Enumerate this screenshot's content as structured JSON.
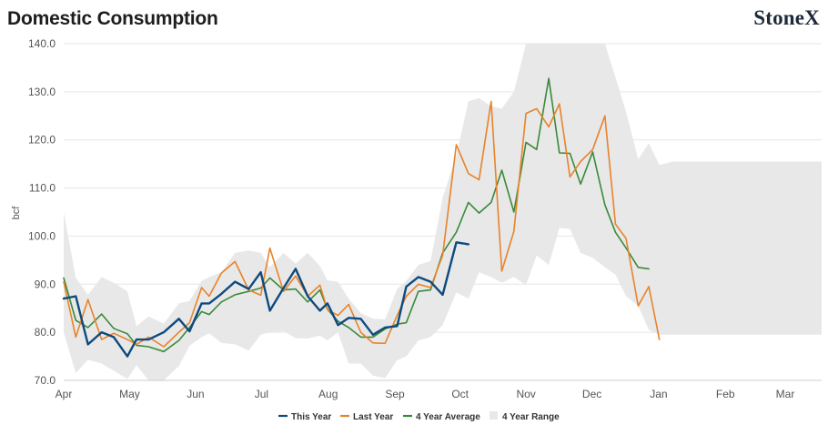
{
  "chart_data": {
    "type": "line",
    "title": "Domestic Consumption",
    "logo_text": "StoneX",
    "ylabel": "bcf",
    "xlabel": "",
    "ylim": [
      70,
      140
    ],
    "yticks": [
      "140.0",
      "130.0",
      "120.0",
      "110.0",
      "100.0",
      "90.0",
      "80.0",
      "70.0"
    ],
    "x_domain": [
      0,
      50
    ],
    "x_ticks": [
      {
        "label": "Apr",
        "x": 0
      },
      {
        "label": "May",
        "x": 4.35
      },
      {
        "label": "Jun",
        "x": 8.7
      },
      {
        "label": "Jul",
        "x": 13.05
      },
      {
        "label": "Aug",
        "x": 17.45
      },
      {
        "label": "Sep",
        "x": 21.85
      },
      {
        "label": "Oct",
        "x": 26.15
      },
      {
        "label": "Nov",
        "x": 30.5
      },
      {
        "label": "Dec",
        "x": 34.85
      },
      {
        "label": "Jan",
        "x": 39.25
      },
      {
        "label": "Feb",
        "x": 43.65
      },
      {
        "label": "Mar",
        "x": 47.6
      }
    ],
    "legend_placement": "bottom",
    "grid": true,
    "colors": {
      "this_year": "#0d4a7e",
      "last_year": "#e8832a",
      "avg": "#3a8a3a",
      "range": "#e8e8e8",
      "grid": "#e6e6e6",
      "axis": "#cccccc"
    },
    "series": [
      {
        "name": "This Year",
        "key": "this_year",
        "x": [
          0,
          0.8,
          1.6,
          2.5,
          3.3,
          4.2,
          4.8,
          5.6,
          6.6,
          7.6,
          8.3,
          9.1,
          9.6,
          10.4,
          11.3,
          12.2,
          13.0,
          13.6,
          14.5,
          15.3,
          16.1,
          16.9,
          17.4,
          18.1,
          18.8,
          19.6,
          20.4,
          21.2,
          22.0,
          22.6,
          23.4,
          24.2,
          25.0,
          25.9,
          26.7,
          27.4,
          28.2,
          28.9,
          29.7,
          30.5,
          31.2,
          32.0,
          32.7,
          33.4
        ],
        "values": [
          87.0,
          87.5,
          77.5,
          80.0,
          79.0,
          75.0,
          78.5,
          78.5,
          80.0,
          82.8,
          80.2,
          86.0,
          86.0,
          88.0,
          90.5,
          89.0,
          92.5,
          84.5,
          89.2,
          93.2,
          87.5,
          84.5,
          86.0,
          81.5,
          83.0,
          82.8,
          79.5,
          81.0,
          81.3,
          89.5,
          91.5,
          90.5,
          87.8,
          98.7,
          98.3,
          null,
          null,
          null,
          null,
          null,
          null,
          null,
          null,
          null
        ]
      },
      {
        "name": "Last Year",
        "key": "last_year",
        "x": [
          0,
          0.8,
          1.6,
          2.5,
          3.3,
          4.2,
          4.8,
          5.6,
          6.6,
          7.6,
          8.3,
          9.1,
          9.6,
          10.4,
          11.3,
          12.2,
          13.0,
          13.6,
          14.5,
          15.3,
          16.1,
          16.9,
          17.4,
          18.1,
          18.8,
          19.6,
          20.4,
          21.2,
          22.0,
          22.6,
          23.4,
          24.2,
          25.0,
          25.9,
          26.7,
          27.4,
          28.2,
          28.9,
          29.7,
          30.5,
          31.2,
          32.0,
          32.7,
          33.4,
          34.1,
          34.9,
          35.7,
          36.4,
          37.1,
          37.9,
          38.6,
          39.3,
          39.4,
          40.2,
          41.0,
          41.8,
          42.5,
          43.3,
          44.2,
          44.9,
          45.7,
          46.5,
          47.3,
          48.1,
          48.8,
          49.5,
          50
        ],
        "values": [
          90.5,
          79.0,
          86.8,
          78.5,
          79.8,
          78.5,
          77.5,
          79.0,
          77.0,
          80.0,
          82.0,
          89.3,
          87.5,
          92.3,
          94.7,
          88.8,
          87.7,
          97.5,
          88.5,
          91.7,
          87.5,
          89.8,
          84.7,
          83.5,
          85.8,
          80.0,
          77.8,
          77.7,
          83.5,
          87.5,
          90.0,
          89.3,
          96.0,
          119.0,
          113.0,
          111.7,
          128.0,
          92.7,
          101.0,
          125.5,
          126.5,
          122.7,
          127.5,
          112.3,
          115.5,
          118.0,
          125.0,
          102.5,
          99.5,
          85.5,
          89.5,
          78.5,
          null,
          null,
          null,
          null,
          null,
          null,
          null,
          null,
          null,
          null,
          null,
          null,
          null,
          null,
          null
        ]
      },
      {
        "name": "4 Year Average",
        "key": "avg",
        "x": [
          0,
          0.8,
          1.6,
          2.5,
          3.3,
          4.2,
          4.8,
          5.6,
          6.6,
          7.6,
          8.3,
          9.1,
          9.6,
          10.4,
          11.3,
          12.2,
          13.0,
          13.6,
          14.5,
          15.3,
          16.1,
          16.9,
          17.4,
          18.1,
          18.8,
          19.6,
          20.4,
          21.2,
          22.0,
          22.6,
          23.4,
          24.2,
          25.0,
          25.9,
          26.7,
          27.4,
          28.2,
          28.9,
          29.7,
          30.5,
          31.2,
          32.0,
          32.7,
          33.4,
          34.1,
          34.9,
          35.7,
          36.4,
          37.1,
          37.9,
          38.6,
          39.3,
          40.2
        ],
        "values": [
          91.3,
          82.5,
          81.0,
          83.8,
          80.8,
          79.7,
          77.3,
          77.0,
          76.0,
          78.3,
          81.0,
          84.3,
          83.7,
          86.3,
          87.8,
          88.5,
          89.2,
          91.3,
          88.8,
          89.0,
          86.3,
          88.8,
          84.8,
          82.3,
          81.0,
          79.0,
          79.0,
          80.7,
          81.7,
          82.0,
          88.5,
          88.8,
          96.5,
          100.8,
          107.0,
          104.8,
          107.0,
          113.7,
          105.0,
          119.5,
          118.0,
          132.8,
          117.3,
          117.2,
          110.8,
          117.5,
          106.5,
          100.8,
          97.5,
          93.5,
          93.2,
          null,
          null
        ]
      }
    ],
    "range": {
      "name": "4 Year Range",
      "x": [
        0,
        0.8,
        1.6,
        2.5,
        3.3,
        4.2,
        4.8,
        5.6,
        6.6,
        7.6,
        8.3,
        9.1,
        9.6,
        10.4,
        11.3,
        12.2,
        13.0,
        13.6,
        14.5,
        15.3,
        16.1,
        16.9,
        17.4,
        18.1,
        18.8,
        19.6,
        20.4,
        21.2,
        22.0,
        22.6,
        23.4,
        24.2,
        25.0,
        25.9,
        26.7,
        27.4,
        28.2,
        28.9,
        29.7,
        30.5,
        31.2,
        32.0,
        32.7,
        33.4,
        34.1,
        34.9,
        35.7,
        36.4,
        37.1,
        37.9,
        38.6,
        39.3,
        40.2,
        41.0,
        41.8,
        42.5,
        43.3,
        44.2,
        44.9,
        45.7,
        46.5,
        47.3,
        48.1,
        48.8,
        49.5,
        50
      ],
      "upper": [
        105,
        91.3,
        87.8,
        91.5,
        90.3,
        88.5,
        81.3,
        83.3,
        81.8,
        86.0,
        86.5,
        90.7,
        91.5,
        92.5,
        96.5,
        97.0,
        96.5,
        93.5,
        96.5,
        94.3,
        96.5,
        93.8,
        90.8,
        90.5,
        87.0,
        84.0,
        82.8,
        82.7,
        89.0,
        90.7,
        94.0,
        94.8,
        108.0,
        116.8,
        128.0,
        128.7,
        127.0,
        126.5,
        130.0,
        140,
        140,
        140,
        140,
        140,
        140,
        140,
        140,
        133.0,
        125.8,
        116.0,
        119.3,
        114.8,
        115.5,
        115.5,
        115.5,
        115.5,
        115.5,
        115.5,
        115.5,
        115.5,
        115.5,
        115.5,
        115.5,
        115.5,
        115.5,
        115.5
      ],
      "lower": [
        80.0,
        71.5,
        74.3,
        73.5,
        72.0,
        70.3,
        73.2,
        70.0,
        70.0,
        73.0,
        77.2,
        79.0,
        79.8,
        77.8,
        77.5,
        76.2,
        79.5,
        80.0,
        80.2,
        78.8,
        78.7,
        79.3,
        78.3,
        80.0,
        73.5,
        73.5,
        71.0,
        70.5,
        74.2,
        75.0,
        78.3,
        79.0,
        81.5,
        88.3,
        87.0,
        92.5,
        91.5,
        90.3,
        91.5,
        89.8,
        96.0,
        94.0,
        101.7,
        101.5,
        96.5,
        95.5,
        93.5,
        92.0,
        87.5,
        85.5,
        80.5,
        79.5,
        79.5,
        79.5,
        79.5,
        79.5,
        79.5,
        79.5,
        79.5,
        79.5,
        79.5,
        79.5,
        79.5,
        79.5,
        79.5,
        79.5
      ]
    }
  }
}
